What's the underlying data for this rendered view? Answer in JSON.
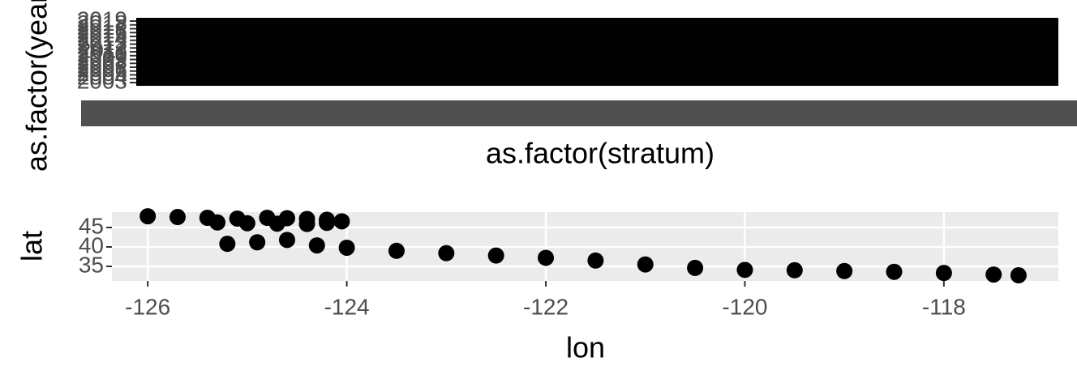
{
  "chart_data": [
    {
      "type": "factor-grid",
      "xlabel": "as.factor(stratum)",
      "ylabel": "as.factor(year)",
      "y_categories": [
        "2003",
        "2004",
        "2005",
        "2006",
        "2007",
        "2008",
        "2009",
        "2010",
        "2011",
        "2012",
        "2013",
        "2014",
        "2015",
        "2016",
        "2017",
        "2018",
        "2019"
      ],
      "color": "#000000"
    },
    {
      "type": "scatter",
      "xlabel": "lon",
      "ylabel": "lat",
      "xlim": [
        -126.36,
        -116.85
      ],
      "ylim": [
        31.25,
        48.96
      ],
      "xticks": [
        -126,
        -124,
        -122,
        -120,
        -118
      ],
      "yticks": [
        35,
        40,
        45
      ],
      "grid": true,
      "color": "#000000",
      "x": [
        -126,
        -125.7,
        -125.4,
        -125.1,
        -124.8,
        -124.6,
        -124.4,
        -124.2,
        -124.05,
        -125.3,
        -125,
        -124.7,
        -124.4,
        -124.2,
        -125.2,
        -124.9,
        -124.6,
        -124.3,
        -124,
        -123.5,
        -123,
        -122.5,
        -122,
        -121.5,
        -121,
        -120.5,
        -120,
        -119.5,
        -119,
        -118.5,
        -118,
        -117.5,
        -117.25
      ],
      "y": [
        47.9,
        47.7,
        47.5,
        47.3,
        47.5,
        47.4,
        47.2,
        47.0,
        46.6,
        46.3,
        46.1,
        46.0,
        45.9,
        46.2,
        40.8,
        41.2,
        41.8,
        40.4,
        39.8,
        39.0,
        38.4,
        37.8,
        37.2,
        36.5,
        35.5,
        34.6,
        34.1,
        34.0,
        33.8,
        33.6,
        33.3,
        32.9,
        32.7
      ]
    }
  ]
}
